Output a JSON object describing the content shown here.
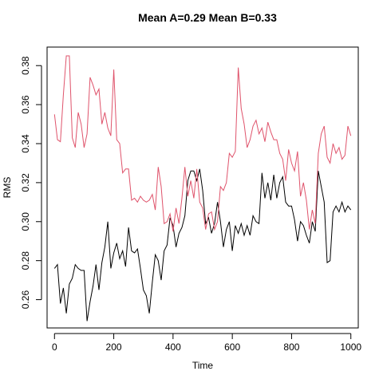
{
  "chart_data": {
    "type": "line",
    "title": "Mean A=0.29  Mean B=0.33",
    "xlabel": "Time",
    "ylabel": "RMS",
    "xlim": [
      -25,
      1025
    ],
    "ylim": [
      0.2455,
      0.3895
    ],
    "x_ticks": [
      0,
      200,
      400,
      600,
      800,
      1000
    ],
    "y_ticks": [
      0.26,
      0.28,
      0.3,
      0.32,
      0.34,
      0.36,
      0.38
    ],
    "y_tick_labels": [
      "0.26",
      "0.28",
      "0.30",
      "0.32",
      "0.34",
      "0.36",
      "0.38"
    ],
    "grid": false,
    "legend": "none",
    "x": [
      0,
      10,
      20,
      30,
      40,
      50,
      60,
      70,
      80,
      90,
      100,
      110,
      120,
      130,
      140,
      150,
      160,
      170,
      180,
      190,
      200,
      210,
      220,
      230,
      240,
      250,
      260,
      270,
      280,
      290,
      300,
      310,
      320,
      330,
      340,
      350,
      360,
      370,
      380,
      390,
      400,
      410,
      420,
      430,
      440,
      450,
      460,
      470,
      480,
      490,
      500,
      510,
      520,
      530,
      540,
      550,
      560,
      570,
      580,
      590,
      600,
      610,
      620,
      630,
      640,
      650,
      660,
      670,
      680,
      690,
      700,
      710,
      720,
      730,
      740,
      750,
      760,
      770,
      780,
      790,
      800,
      810,
      820,
      830,
      840,
      850,
      860,
      870,
      880,
      890,
      900,
      910,
      920,
      930,
      940,
      950,
      960,
      970,
      980,
      990,
      1000
    ],
    "series": [
      {
        "color": "#000000",
        "values": [
          0.276,
          0.278,
          0.258,
          0.266,
          0.253,
          0.268,
          0.271,
          0.278,
          0.276,
          0.275,
          0.275,
          0.249,
          0.259,
          0.267,
          0.278,
          0.265,
          0.279,
          0.287,
          0.3,
          0.276,
          0.284,
          0.289,
          0.281,
          0.285,
          0.277,
          0.297,
          0.285,
          0.284,
          0.286,
          0.276,
          0.265,
          0.262,
          0.253,
          0.269,
          0.283,
          0.28,
          0.27,
          0.285,
          0.288,
          0.302,
          0.298,
          0.287,
          0.294,
          0.297,
          0.303,
          0.321,
          0.326,
          0.326,
          0.321,
          0.327,
          0.316,
          0.299,
          0.302,
          0.294,
          0.299,
          0.31,
          0.3,
          0.287,
          0.296,
          0.3,
          0.285,
          0.298,
          0.294,
          0.299,
          0.293,
          0.298,
          0.293,
          0.303,
          0.3,
          0.299,
          0.325,
          0.312,
          0.32,
          0.311,
          0.324,
          0.312,
          0.32,
          0.323,
          0.31,
          0.308,
          0.308,
          0.301,
          0.29,
          0.3,
          0.298,
          0.293,
          0.289,
          0.3,
          0.295,
          0.326,
          0.318,
          0.31,
          0.279,
          0.28,
          0.305,
          0.308,
          0.305,
          0.31,
          0.305,
          0.308,
          0.306
        ],
        "values_tail": []
      },
      {
        "color": "#DF536B",
        "values": [
          0.355,
          0.342,
          0.341,
          0.365,
          0.385,
          0.385,
          0.343,
          0.338,
          0.356,
          0.35,
          0.338,
          0.345,
          0.374,
          0.37,
          0.365,
          0.368,
          0.35,
          0.356,
          0.348,
          0.344,
          0.378,
          0.342,
          0.34,
          0.325,
          0.327,
          0.327,
          0.311,
          0.312,
          0.31,
          0.313,
          0.311,
          0.31,
          0.311,
          0.314,
          0.306,
          0.328,
          0.318,
          0.299,
          0.3,
          0.304,
          0.295,
          0.307,
          0.299,
          0.312,
          0.328,
          0.313,
          0.321,
          0.312,
          0.327,
          0.31,
          0.307,
          0.296,
          0.304,
          0.305,
          0.296,
          0.3,
          0.318,
          0.316,
          0.32,
          0.335,
          0.333,
          0.336,
          0.379,
          0.358,
          0.35,
          0.338,
          0.342,
          0.349,
          0.352,
          0.345,
          0.348,
          0.341,
          0.351,
          0.346,
          0.342,
          0.342,
          0.335,
          0.332,
          0.321,
          0.337,
          0.33,
          0.326,
          0.336,
          0.313,
          0.32,
          0.311,
          0.296,
          0.306,
          0.299,
          0.335,
          0.345,
          0.349,
          0.333,
          0.33,
          0.34,
          0.335,
          0.338,
          0.332,
          0.334,
          0.349,
          0.344
        ],
        "values_tail": []
      }
    ]
  }
}
